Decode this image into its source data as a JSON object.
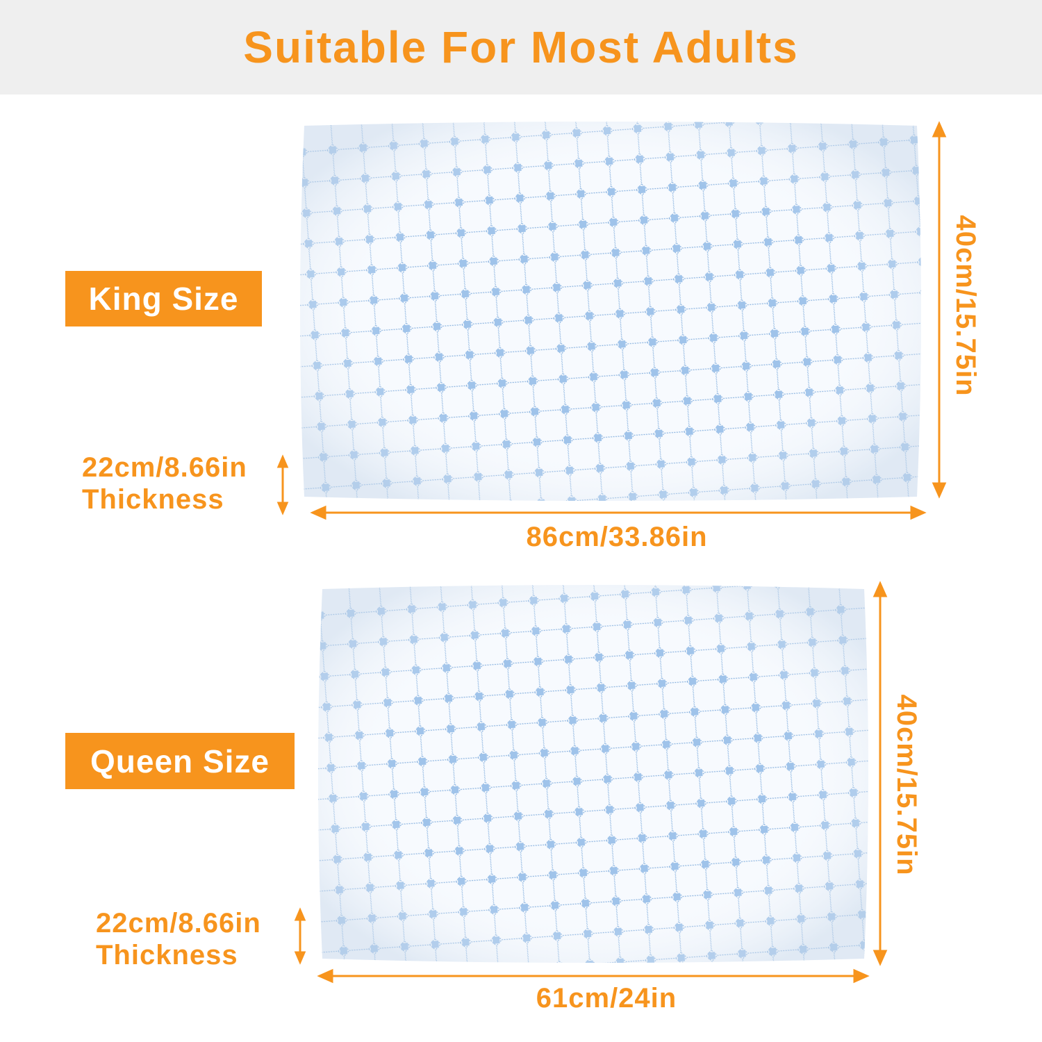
{
  "title": "Suitable For Most Adults",
  "colors": {
    "accent": "#f7941d",
    "banner_bg": "#efefef",
    "pattern": "#6fa3d8"
  },
  "king": {
    "label": "King Size",
    "height": "40cm/15.75in",
    "width": "86cm/33.86in",
    "thickness_value": "22cm/8.66in",
    "thickness_label": "Thickness"
  },
  "queen": {
    "label": "Queen Size",
    "height": "40cm/15.75in",
    "width": "61cm/24in",
    "thickness_value": "22cm/8.66in",
    "thickness_label": "Thickness"
  }
}
